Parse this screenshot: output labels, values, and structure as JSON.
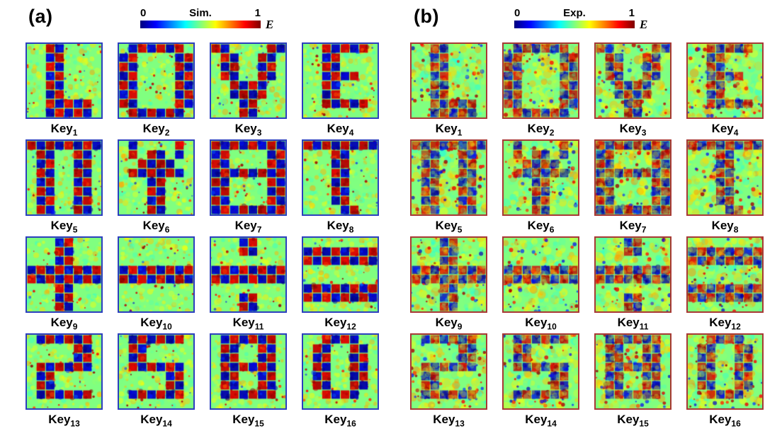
{
  "chart_data": {
    "type": "heatmap",
    "colormap": "jet",
    "value_range": [
      0,
      1
    ],
    "grid": [
      8,
      8
    ],
    "panels": [
      {
        "id": "a",
        "label": "(a)",
        "style": "simulation",
        "border_color": "#2b3fbe",
        "colorbar": {
          "tick_min": "0",
          "tick_max": "1",
          "title": "Sim.",
          "axis_label": "E"
        }
      },
      {
        "id": "b",
        "label": "(b)",
        "style": "experiment",
        "border_color": "#a83834",
        "colorbar": {
          "tick_min": "0",
          "tick_max": "1",
          "title": "Exp.",
          "axis_label": "E"
        }
      }
    ],
    "keys": [
      {
        "label": "Key",
        "subscript": "1",
        "symbol": "L",
        "mask": [
          "00110000",
          "00110000",
          "00110000",
          "00110000",
          "00110000",
          "00110000",
          "00111110",
          "00111110"
        ]
      },
      {
        "label": "Key",
        "subscript": "2",
        "symbol": "O",
        "mask": [
          "01111110",
          "11000011",
          "11000011",
          "11000011",
          "11000011",
          "11000011",
          "11000011",
          "01111110"
        ]
      },
      {
        "label": "Key",
        "subscript": "3",
        "symbol": "V",
        "mask": [
          "11000011",
          "01100110",
          "01100110",
          "01100110",
          "00111100",
          "00111100",
          "00011000",
          "00011000"
        ]
      },
      {
        "label": "Key",
        "subscript": "4",
        "symbol": "E",
        "mask": [
          "00111110",
          "00110000",
          "00110000",
          "00111100",
          "00110000",
          "00110000",
          "00111110",
          "00000000"
        ]
      },
      {
        "label": "Key",
        "subscript": "5",
        "symbol": "Pi",
        "mask": [
          "11111111",
          "01100110",
          "01100110",
          "01100110",
          "01100110",
          "01100110",
          "01100110",
          "01100110"
        ]
      },
      {
        "label": "Key",
        "subscript": "6",
        "symbol": "Psi",
        "mask": [
          "01000010",
          "01011010",
          "00111100",
          "01111110",
          "00011000",
          "00011000",
          "00011000",
          "00011000"
        ]
      },
      {
        "label": "Key",
        "subscript": "7",
        "symbol": "sun-glyph",
        "mask": [
          "11111111",
          "11000011",
          "11000011",
          "11111111",
          "11000011",
          "11000011",
          "11000011",
          "11111111"
        ]
      },
      {
        "label": "Key",
        "subscript": "8",
        "symbol": "T",
        "mask": [
          "11111111",
          "00011000",
          "00011000",
          "00011000",
          "00011000",
          "00011000",
          "00011000",
          "00001100"
        ]
      },
      {
        "label": "Key",
        "subscript": "9",
        "symbol": "plus",
        "mask": [
          "00011000",
          "00011000",
          "00011000",
          "11111111",
          "11111111",
          "00011000",
          "00011000",
          "00011000"
        ]
      },
      {
        "label": "Key",
        "subscript": "10",
        "symbol": "minus",
        "mask": [
          "00000000",
          "00000000",
          "00000000",
          "11111111",
          "11111111",
          "00000000",
          "00000000",
          "00000000"
        ]
      },
      {
        "label": "Key",
        "subscript": "11",
        "symbol": "divide",
        "mask": [
          "00011000",
          "00011000",
          "00000000",
          "11111111",
          "11111111",
          "00000000",
          "00011000",
          "00011000"
        ]
      },
      {
        "label": "Key",
        "subscript": "12",
        "symbol": "equals",
        "mask": [
          "00000000",
          "11111111",
          "11111111",
          "00000000",
          "00000000",
          "11111111",
          "11111111",
          "00000000"
        ]
      },
      {
        "label": "Key",
        "subscript": "13",
        "symbol": "2",
        "mask": [
          "01111110",
          "00000110",
          "00000110",
          "01111110",
          "01100000",
          "01100000",
          "01111110",
          "00000000"
        ]
      },
      {
        "label": "Key",
        "subscript": "14",
        "symbol": "5",
        "mask": [
          "01111110",
          "01100000",
          "01100000",
          "01111110",
          "00000110",
          "00000110",
          "01111110",
          "00000000"
        ]
      },
      {
        "label": "Key",
        "subscript": "15",
        "symbol": "8",
        "mask": [
          "01111110",
          "01100110",
          "01100110",
          "01111110",
          "01100110",
          "01100110",
          "01111110",
          "00000000"
        ]
      },
      {
        "label": "Key",
        "subscript": "16",
        "symbol": "0",
        "mask": [
          "00111100",
          "01100110",
          "01100110",
          "01100110",
          "01100110",
          "01100110",
          "00111100",
          "00000000"
        ]
      }
    ]
  }
}
